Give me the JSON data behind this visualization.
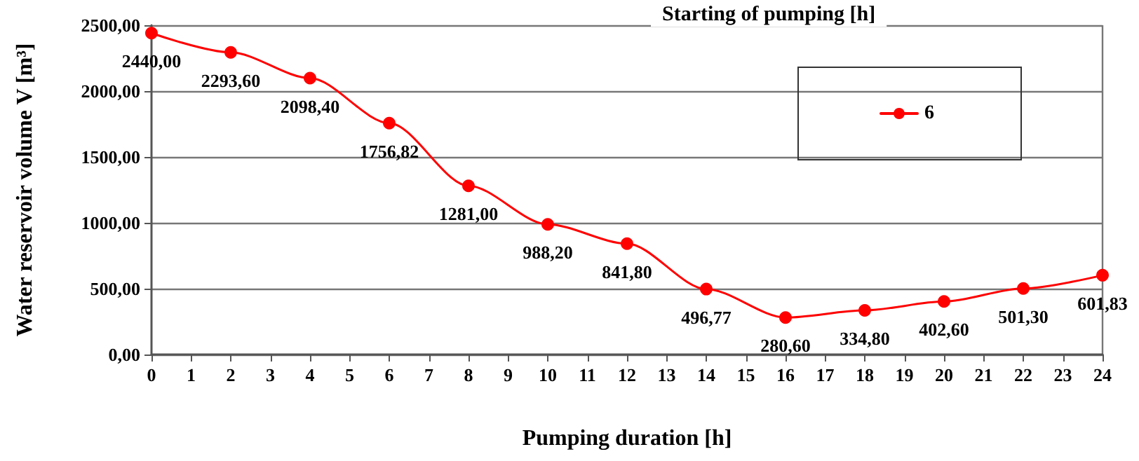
{
  "chart_data": {
    "type": "line",
    "xlabel": "Pumping duration [h]",
    "ylabel": "Water reservoir volume V [m³]",
    "legend_title": "Starting of pumping [h]",
    "x": [
      0,
      2,
      4,
      6,
      8,
      10,
      12,
      14,
      16,
      18,
      20,
      22,
      24
    ],
    "series": [
      {
        "name": "6",
        "color": "#ff0000",
        "values": [
          2440.0,
          2293.6,
          2098.4,
          1756.82,
          1281.0,
          988.2,
          841.8,
          496.77,
          280.6,
          334.8,
          402.6,
          501.3,
          601.83
        ],
        "value_labels": [
          "2440,00",
          "2293,60",
          "2098,40",
          "1756,82",
          "1281,00",
          "988,20",
          "841,80",
          "496,77",
          "280,60",
          "334,80",
          "402,60",
          "501,30",
          "601,83"
        ]
      }
    ],
    "xlim": [
      0,
      24
    ],
    "xticks": [
      0,
      1,
      2,
      3,
      4,
      5,
      6,
      7,
      8,
      9,
      10,
      11,
      12,
      13,
      14,
      15,
      16,
      17,
      18,
      19,
      20,
      21,
      22,
      23,
      24
    ],
    "ylim": [
      0,
      2500
    ],
    "yticks": [
      {
        "value": 0,
        "label": "0,00"
      },
      {
        "value": 500,
        "label": "500,00"
      },
      {
        "value": 1000,
        "label": "1000,00"
      },
      {
        "value": 1500,
        "label": "1500,00"
      },
      {
        "value": 2000,
        "label": "2000,00"
      },
      {
        "value": 2500,
        "label": "2500,00"
      }
    ],
    "grid": "y",
    "legend": "top right",
    "marker": "circle",
    "line_style": "solid"
  }
}
